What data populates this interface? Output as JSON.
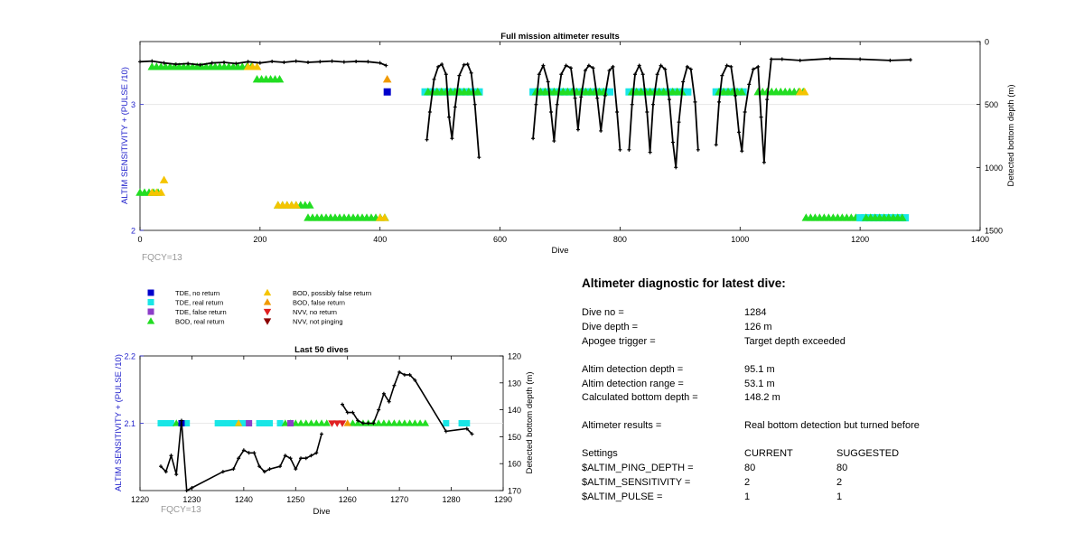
{
  "colors": {
    "tde_no_return": "#0000cc",
    "tde_real_return": "#19e6e6",
    "tde_false_return": "#8c3dc8",
    "bod_real_return": "#22dd22",
    "bod_possibly_false": "#f5c400",
    "bod_false_return": "#f09a00",
    "nvv_no_return": "#e02020",
    "nvv_not_pinging": "#8b0000",
    "line": "#000000",
    "axis_label_blue": "#2323cc",
    "fqcy_gray": "#999999"
  },
  "chart_data": [
    {
      "type": "scatter",
      "title": "Full mission altimeter results",
      "xlabel": "Dive",
      "ylabel": "ALTIM SENSITIVITY + (PULSE /10)",
      "y2label": "Detected bottom depth (m)",
      "xlim": [
        0,
        1400
      ],
      "ylim": [
        2,
        3.5
      ],
      "y2lim": [
        1500,
        0
      ],
      "x_ticks": [
        "0",
        "200",
        "400",
        "600",
        "800",
        "1000",
        "1200",
        "1400"
      ],
      "y_ticks": [
        "2",
        "3"
      ],
      "y2_ticks": [
        "0",
        "500",
        "1000",
        "1500"
      ],
      "annotation": "FQCY=13",
      "marker_runs": [
        {
          "kind": "bod_real_return",
          "x0": 20,
          "x1": 190,
          "y": 3.3
        },
        {
          "kind": "bod_possibly_false",
          "x0": 180,
          "x1": 195,
          "y": 3.3
        },
        {
          "kind": "bod_real_return",
          "x0": 195,
          "x1": 235,
          "y": 3.2
        },
        {
          "kind": "bod_false_return",
          "x0": 412,
          "x1": 412,
          "y": 3.2
        },
        {
          "kind": "tde_no_return",
          "x0": 412,
          "x1": 412,
          "y": 3.1
        },
        {
          "kind": "tde_real_return",
          "x0": 475,
          "x1": 570,
          "y": 3.1
        },
        {
          "kind": "bod_real_return",
          "x0": 480,
          "x1": 565,
          "y": 3.1
        },
        {
          "kind": "tde_real_return",
          "x0": 655,
          "x1": 790,
          "y": 3.1
        },
        {
          "kind": "bod_real_return",
          "x0": 660,
          "x1": 780,
          "y": 3.1
        },
        {
          "kind": "tde_real_return",
          "x0": 815,
          "x1": 915,
          "y": 3.1
        },
        {
          "kind": "bod_real_return",
          "x0": 820,
          "x1": 905,
          "y": 3.1
        },
        {
          "kind": "tde_real_return",
          "x0": 960,
          "x1": 1010,
          "y": 3.1
        },
        {
          "kind": "bod_real_return",
          "x0": 965,
          "x1": 1005,
          "y": 3.1
        },
        {
          "kind": "bod_real_return",
          "x0": 1030,
          "x1": 1110,
          "y": 3.1
        },
        {
          "kind": "bod_possibly_false",
          "x0": 1100,
          "x1": 1110,
          "y": 3.1
        },
        {
          "kind": "bod_real_return",
          "x0": 0,
          "x1": 35,
          "y": 2.3
        },
        {
          "kind": "bod_possibly_false",
          "x0": 20,
          "x1": 40,
          "y": 2.3
        },
        {
          "kind": "bod_possibly_false",
          "x0": 40,
          "x1": 40,
          "y": 2.4
        },
        {
          "kind": "bod_real_return",
          "x0": 230,
          "x1": 285,
          "y": 2.2
        },
        {
          "kind": "bod_possibly_false",
          "x0": 230,
          "x1": 260,
          "y": 2.2
        },
        {
          "kind": "bod_real_return",
          "x0": 280,
          "x1": 410,
          "y": 2.1
        },
        {
          "kind": "bod_possibly_false",
          "x0": 400,
          "x1": 410,
          "y": 2.1
        },
        {
          "kind": "bod_real_return",
          "x0": 1110,
          "x1": 1200,
          "y": 2.1
        },
        {
          "kind": "tde_real_return",
          "x0": 1200,
          "x1": 1280,
          "y": 2.1
        },
        {
          "kind": "bod_real_return",
          "x0": 1210,
          "x1": 1275,
          "y": 2.1
        }
      ],
      "depth_segments": [
        [
          [
            0,
            160
          ],
          [
            20,
            155
          ],
          [
            40,
            170
          ],
          [
            60,
            180
          ],
          [
            80,
            175
          ],
          [
            100,
            185
          ],
          [
            120,
            170
          ],
          [
            140,
            165
          ],
          [
            160,
            175
          ],
          [
            180,
            160
          ],
          [
            200,
            170
          ],
          [
            220,
            158
          ],
          [
            240,
            165
          ],
          [
            260,
            155
          ],
          [
            280,
            165
          ],
          [
            300,
            160
          ],
          [
            320,
            155
          ],
          [
            340,
            162
          ],
          [
            360,
            158
          ],
          [
            380,
            160
          ],
          [
            400,
            170
          ],
          [
            410,
            190
          ]
        ],
        [
          [
            478,
            780
          ],
          [
            483,
            560
          ],
          [
            490,
            300
          ],
          [
            497,
            200
          ],
          [
            503,
            180
          ],
          [
            510,
            260
          ],
          [
            515,
            600
          ],
          [
            520,
            770
          ],
          [
            525,
            520
          ],
          [
            532,
            270
          ],
          [
            540,
            185
          ],
          [
            546,
            180
          ],
          [
            552,
            250
          ],
          [
            558,
            500
          ],
          [
            565,
            920
          ]
        ],
        [
          [
            655,
            770
          ],
          [
            660,
            500
          ],
          [
            665,
            260
          ],
          [
            672,
            190
          ],
          [
            680,
            320
          ],
          [
            685,
            560
          ],
          [
            690,
            790
          ],
          [
            695,
            500
          ],
          [
            702,
            260
          ],
          [
            710,
            190
          ],
          [
            718,
            210
          ],
          [
            725,
            450
          ],
          [
            730,
            700
          ],
          [
            735,
            440
          ],
          [
            742,
            230
          ],
          [
            748,
            190
          ],
          [
            755,
            210
          ],
          [
            762,
            450
          ],
          [
            768,
            710
          ],
          [
            775,
            430
          ],
          [
            782,
            230
          ],
          [
            788,
            200
          ],
          [
            795,
            560
          ],
          [
            800,
            860
          ]
        ],
        [
          [
            815,
            860
          ],
          [
            820,
            500
          ],
          [
            825,
            260
          ],
          [
            832,
            190
          ],
          [
            838,
            260
          ],
          [
            845,
            560
          ],
          [
            850,
            880
          ],
          [
            855,
            500
          ],
          [
            862,
            260
          ],
          [
            868,
            190
          ],
          [
            875,
            220
          ],
          [
            882,
            460
          ],
          [
            888,
            800
          ],
          [
            893,
            1000
          ],
          [
            898,
            640
          ],
          [
            905,
            320
          ],
          [
            912,
            200
          ],
          [
            918,
            220
          ],
          [
            925,
            480
          ],
          [
            930,
            860
          ]
        ],
        [
          [
            960,
            820
          ],
          [
            965,
            480
          ],
          [
            970,
            270
          ],
          [
            978,
            190
          ],
          [
            985,
            200
          ],
          [
            992,
            430
          ],
          [
            998,
            720
          ],
          [
            1003,
            870
          ],
          [
            1008,
            560
          ],
          [
            1015,
            340
          ],
          [
            1022,
            220
          ],
          [
            1030,
            200
          ],
          [
            1035,
            600
          ],
          [
            1040,
            960
          ],
          [
            1045,
            460
          ],
          [
            1052,
            140
          ],
          [
            1070,
            140
          ],
          [
            1100,
            150
          ],
          [
            1150,
            135
          ],
          [
            1200,
            140
          ],
          [
            1250,
            150
          ],
          [
            1284,
            145
          ]
        ]
      ]
    },
    {
      "type": "scatter",
      "title": "Last 50 dives",
      "xlabel": "Dive",
      "ylabel": "ALTIM SENSITIVITY + (PULSE /10)",
      "y2label": "Detected bottom depth (m)",
      "xlim": [
        1220,
        1290
      ],
      "ylim": [
        2.0,
        2.2
      ],
      "y2lim": [
        170,
        120
      ],
      "x_ticks": [
        "1220",
        "1230",
        "1240",
        "1250",
        "1260",
        "1270",
        "1280",
        "1290"
      ],
      "y_ticks": [
        "2.1",
        "2.2"
      ],
      "y2_ticks": [
        "120",
        "130",
        "140",
        "150",
        "160",
        "170"
      ],
      "annotation": "FQCY=13",
      "markers": [
        {
          "kind": "tde_real_return",
          "dives": [
            1224,
            1225,
            1226,
            1229,
            1235,
            1236,
            1237,
            1238,
            1239,
            1240,
            1241,
            1243,
            1244,
            1245,
            1247,
            1279,
            1282,
            1283
          ]
        },
        {
          "kind": "bod_real_return",
          "dives": [
            1227,
            1248,
            1249,
            1250,
            1251,
            1252,
            1253,
            1254,
            1255,
            1256,
            1261,
            1262,
            1263,
            1264,
            1265,
            1266,
            1267,
            1268,
            1269,
            1270,
            1271,
            1272,
            1273,
            1274,
            1275
          ]
        },
        {
          "kind": "tde_no_return",
          "dives": [
            1228
          ]
        },
        {
          "kind": "bod_possibly_false",
          "dives": [
            1239
          ]
        },
        {
          "kind": "bod_false_return",
          "dives": [
            1260
          ]
        },
        {
          "kind": "tde_false_return",
          "dives": [
            1241,
            1249
          ]
        },
        {
          "kind": "nvv_no_return",
          "dives": [
            1257,
            1258,
            1259
          ]
        }
      ],
      "depth_segments": [
        [
          [
            1224,
            161
          ],
          [
            1225,
            163
          ],
          [
            1226,
            157
          ],
          [
            1227,
            164
          ],
          [
            1228,
            144
          ],
          [
            1229,
            170
          ],
          [
            1230,
            169
          ],
          [
            1236,
            163
          ],
          [
            1238,
            162
          ],
          [
            1239,
            158
          ],
          [
            1240,
            155
          ],
          [
            1241,
            156
          ],
          [
            1242,
            156
          ],
          [
            1243,
            161
          ],
          [
            1244,
            163
          ],
          [
            1245,
            162
          ],
          [
            1247,
            161
          ],
          [
            1248,
            157
          ],
          [
            1249,
            158
          ],
          [
            1250,
            162
          ],
          [
            1251,
            158
          ],
          [
            1252,
            158
          ],
          [
            1253,
            157
          ],
          [
            1254,
            156
          ],
          [
            1255,
            149
          ]
        ],
        [
          [
            1259,
            138
          ],
          [
            1260,
            141
          ],
          [
            1261,
            141
          ],
          [
            1262,
            144
          ],
          [
            1263,
            145
          ],
          [
            1264,
            145
          ],
          [
            1265,
            145
          ],
          [
            1266,
            140
          ],
          [
            1267,
            134
          ],
          [
            1268,
            137
          ],
          [
            1269,
            131
          ],
          [
            1270,
            126
          ],
          [
            1271,
            127
          ],
          [
            1272,
            127
          ],
          [
            1273,
            129
          ],
          [
            1279,
            148
          ],
          [
            1283,
            147
          ],
          [
            1284,
            149
          ]
        ]
      ]
    }
  ],
  "legend": {
    "items": [
      {
        "kind": "tde_no_return",
        "shape": "square",
        "label": "TDE, no return"
      },
      {
        "kind": "tde_real_return",
        "shape": "square",
        "label": "TDE, real return"
      },
      {
        "kind": "tde_false_return",
        "shape": "square",
        "label": "TDE, false return"
      },
      {
        "kind": "bod_real_return",
        "shape": "triangle-up",
        "label": "BOD, real return"
      },
      {
        "kind": "bod_possibly_false",
        "shape": "triangle-up",
        "label": "BOD, possibly false return"
      },
      {
        "kind": "bod_false_return",
        "shape": "triangle-up",
        "label": "BOD, false return"
      },
      {
        "kind": "nvv_no_return",
        "shape": "triangle-down",
        "label": "NVV, no return"
      },
      {
        "kind": "nvv_not_pinging",
        "shape": "triangle-down",
        "label": "NVV, not pinging"
      }
    ]
  },
  "diagnostic": {
    "title": "Altimeter diagnostic for latest dive:",
    "dive_no_label": "Dive no =",
    "dive_no": "1284",
    "dive_depth_label": "Dive depth =",
    "dive_depth": "126 m",
    "apogee_label": "Apogee trigger =",
    "apogee": "Target depth exceeded",
    "altim_det_depth_label": "Altim detection depth =",
    "altim_det_depth": "95.1 m",
    "altim_det_range_label": "Altim detection range =",
    "altim_det_range": "53.1 m",
    "calc_bottom_label": "Calculated bottom depth =",
    "calc_bottom": "148.2 m",
    "results_label": "Altimeter results =",
    "results": "Real bottom detection but turned before",
    "settings_label": "Settings",
    "current_label": "CURRENT",
    "suggested_label": "SUGGESTED",
    "ping_depth_label": "$ALTIM_PING_DEPTH =",
    "ping_depth_current": "80",
    "ping_depth_suggested": "80",
    "sensitivity_label": "$ALTIM_SENSITIVITY =",
    "sensitivity_current": "2",
    "sensitivity_suggested": "2",
    "pulse_label": "$ALTIM_PULSE =",
    "pulse_current": "1",
    "pulse_suggested": "1"
  }
}
